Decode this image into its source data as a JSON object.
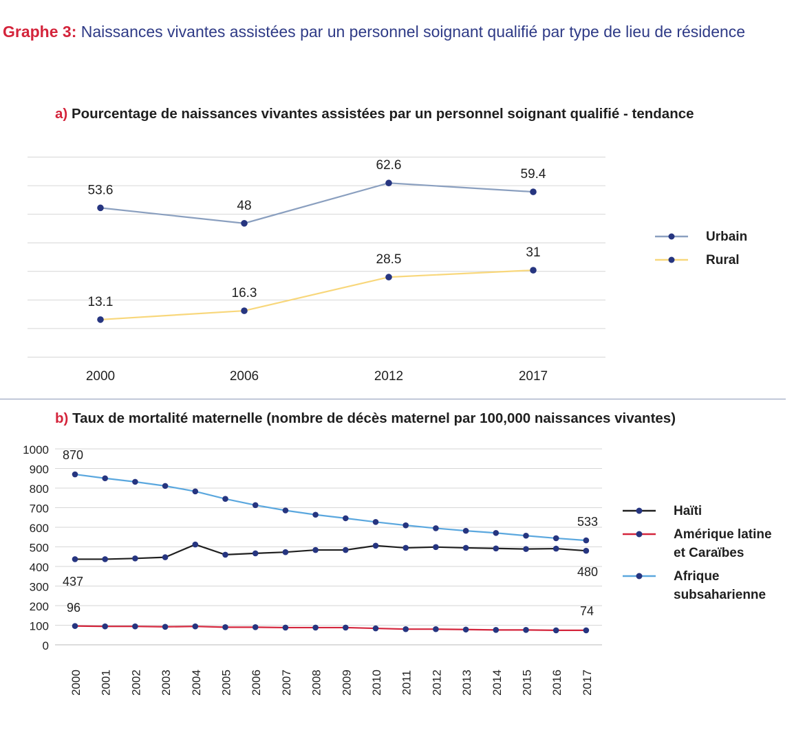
{
  "title": {
    "prefix": "Graphe 3:",
    "text": "Naissances vivantes assistées par un personnel soignant qualifié par type de lieu de résidence"
  },
  "chart_data": [
    {
      "type": "line",
      "letter": "a)",
      "title": "Pourcentage de naissances vivantes assistées par un personnel soignant qualifié - tendance",
      "categories": [
        "2000",
        "2006",
        "2012",
        "2017"
      ],
      "series": [
        {
          "name": "Urbain",
          "values": [
            53.6,
            48,
            62.6,
            59.4
          ],
          "color": "#8a9fbf",
          "labels": [
            "53.6",
            "48",
            "62.6",
            "59.4"
          ]
        },
        {
          "name": "Rural",
          "values": [
            13.1,
            16.3,
            28.5,
            31
          ],
          "color": "#f8d77b",
          "labels": [
            "13.1",
            "16.3",
            "28.5",
            "31"
          ]
        }
      ],
      "marker_color": "#263580",
      "grid": true,
      "legend_position": "right",
      "ylim": [
        -0.5,
        72
      ]
    },
    {
      "type": "line",
      "letter": "b)",
      "title": "Taux de mortalité maternelle (nombre de décès maternel par 100,000 naissances vivantes)",
      "x": [
        "2000",
        "2001",
        "2002",
        "2003",
        "2004",
        "2005",
        "2006",
        "2007",
        "2008",
        "2009",
        "2010",
        "2011",
        "2012",
        "2013",
        "2014",
        "2015",
        "2016",
        "2017"
      ],
      "yticks": [
        "0",
        "100",
        "200",
        "300",
        "400",
        "500",
        "600",
        "700",
        "800",
        "900",
        "1000"
      ],
      "ylim": [
        0,
        1000
      ],
      "series": [
        {
          "name": "Haïti",
          "color": "#1f1f1f",
          "values": [
            437,
            437,
            441,
            447,
            512,
            460,
            467,
            473,
            484,
            484,
            506,
            495,
            499,
            495,
            492,
            489,
            491,
            480
          ],
          "start_label": "437",
          "end_label": "480"
        },
        {
          "name": "Amérique latine\net Caraïbes",
          "color": "#d4243b",
          "values": [
            96,
            94,
            94,
            92,
            94,
            90,
            90,
            88,
            88,
            88,
            84,
            80,
            80,
            78,
            76,
            76,
            74,
            74
          ],
          "start_label": "96",
          "end_label": "74"
        },
        {
          "name": "Afrique\nsubsaharienne",
          "color": "#5aa7de",
          "values": [
            870,
            850,
            832,
            811,
            783,
            745,
            713,
            686,
            664,
            646,
            627,
            610,
            595,
            582,
            571,
            557,
            544,
            533
          ],
          "start_label": "870",
          "end_label": "533"
        }
      ],
      "marker_color": "#263580",
      "grid": true,
      "legend_position": "right"
    }
  ]
}
